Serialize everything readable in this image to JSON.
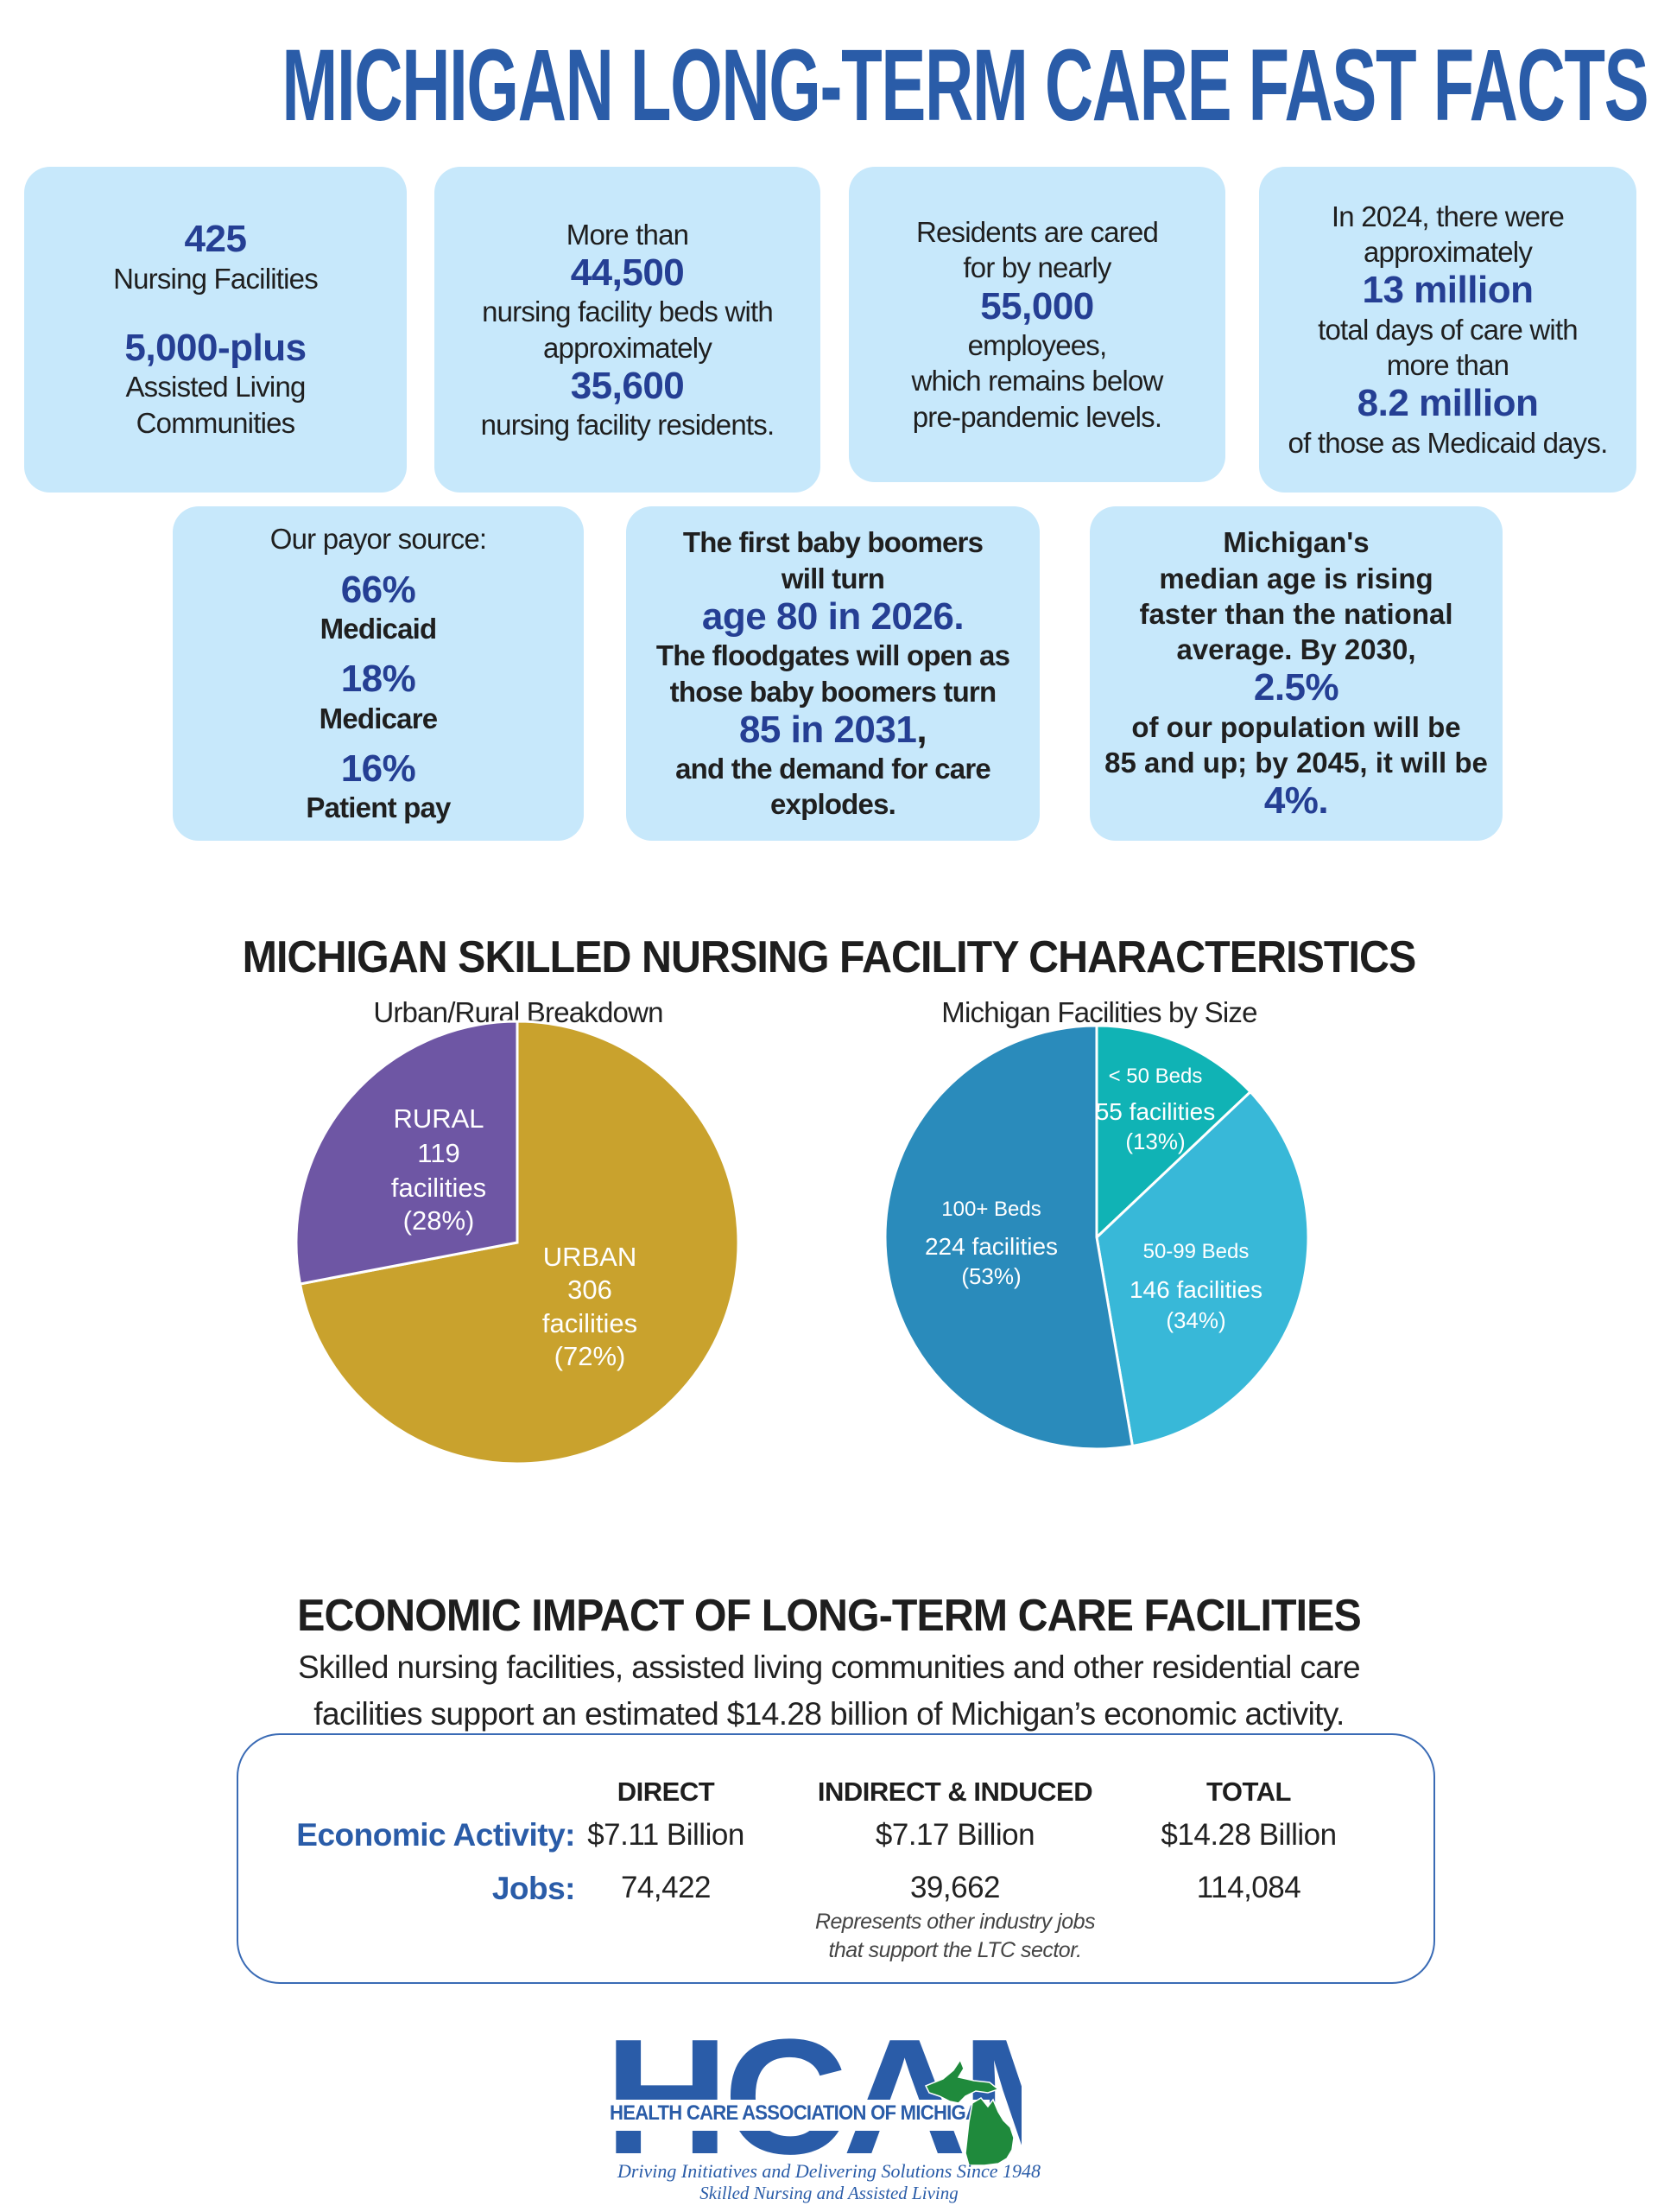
{
  "title": "MICHIGAN LONG-TERM CARE FAST FACTS",
  "colors": {
    "brand_blue": "#2a5ca8",
    "stat_blue": "#253f94",
    "box_bg": "#c7e8fb",
    "urban": "#c9a22d",
    "rural": "#6e56a4",
    "beds_lt50": "#10b3b5",
    "beds_50_99": "#38b8d8",
    "beds_100_plus": "#2a8bbb",
    "map_green": "#1f8a3c"
  },
  "fast_facts": {
    "box1": {
      "stat1": "425",
      "label1": "Nursing Facilities",
      "stat2": "5,000-plus",
      "label2a": "Assisted Living",
      "label2b": "Communities"
    },
    "box2": {
      "intro": "More than",
      "stat1": "44,500",
      "line1": "nursing facility beds with",
      "line2": "approximately",
      "stat2": "35,600",
      "line3": "nursing facility residents."
    },
    "box3": {
      "line1": "Residents are cared",
      "line2": "for by nearly",
      "stat": "55,000",
      "line3": "employees,",
      "line4": "which remains below",
      "line5": "pre-pandemic levels."
    },
    "box4": {
      "line1": "In 2024, there were",
      "line2": "approximately",
      "stat1": "13 million",
      "line3": "total days of care with",
      "line4": "more than",
      "stat2": "8.2 million",
      "line5": "of those as Medicaid days."
    },
    "box5": {
      "heading": "Our payor source:",
      "items": [
        {
          "pct": "66%",
          "label": "Medicaid"
        },
        {
          "pct": "18%",
          "label": "Medicare"
        },
        {
          "pct": "16%",
          "label": "Patient pay"
        }
      ]
    },
    "box6": {
      "line1": "The first baby boomers",
      "line2": "will turn",
      "stat1": "age 80 in 2026",
      "stat1_punct": ".",
      "line3": "The floodgates will open as",
      "line4": "those baby boomers turn",
      "stat2": "85 in 2031",
      "stat2_punct": ",",
      "line5": "and the demand for care",
      "line6": "explodes."
    },
    "box7": {
      "line1": "Michigan's",
      "line2": "median age is rising",
      "line3": "faster than the national",
      "line4": "average. By 2030,",
      "stat1": "2.5%",
      "line5": "of our population will be",
      "line6": "85 and up; by 2045, it will be",
      "stat2": "4%."
    }
  },
  "snf_section": {
    "title": "MICHIGAN SKILLED NURSING FACILITY CHARACTERISTICS"
  },
  "chart_data": [
    {
      "type": "pie",
      "title": "Urban/Rural Breakdown",
      "start": "top, clockwise",
      "slices": [
        {
          "name": "URBAN",
          "value": 306,
          "percent": 72,
          "count_label": "306",
          "unit_label": "facilities",
          "pct_label": "(72%)",
          "color": "#c9a22d"
        },
        {
          "name": "RURAL",
          "value": 119,
          "percent": 28,
          "count_label": "119",
          "unit_label": "facilities",
          "pct_label": "(28%)",
          "color": "#6e56a4"
        }
      ]
    },
    {
      "type": "pie",
      "title": "Michigan Facilities by Size",
      "start": "top, clockwise",
      "slices": [
        {
          "name": "< 50 Beds",
          "value": 55,
          "percent": 13,
          "count_label": "55 facilities",
          "pct_label": "(13%)",
          "color": "#10b3b5"
        },
        {
          "name": "50-99 Beds",
          "value": 146,
          "percent": 34,
          "count_label": "146 facilities",
          "pct_label": "(34%)",
          "color": "#38b8d8"
        },
        {
          "name": "100+ Beds",
          "value": 224,
          "percent": 53,
          "count_label": "224 facilities",
          "pct_label": "(53%)",
          "color": "#2a8bbb"
        }
      ]
    }
  ],
  "economic": {
    "title": "ECONOMIC IMPACT OF LONG-TERM CARE FACILITIES",
    "description_line1": "Skilled nursing facilities, assisted living communities and other residential care",
    "description_line2": "facilities support an estimated $14.28 billion of Michigan’s economic activity.",
    "columns": [
      "DIRECT",
      "INDIRECT & INDUCED",
      "TOTAL"
    ],
    "rows": [
      {
        "label": "Economic Activity:",
        "values": [
          "$7.11 Billion",
          "$7.17 Billion",
          "$14.28 Billion"
        ]
      },
      {
        "label": "Jobs:",
        "values": [
          "74,422",
          "39,662",
          "114,084"
        ]
      }
    ],
    "note_line1": "Represents other industry jobs",
    "note_line2": "that support the LTC sector."
  },
  "logo": {
    "letters": "HCAM",
    "org_name": "HEALTH CARE ASSOCIATION OF MICHIGAN",
    "tagline1": "Driving Initiatives and Delivering Solutions Since 1948",
    "tagline2": "Skilled Nursing and Assisted Living",
    "icon": "michigan-map-icon"
  }
}
